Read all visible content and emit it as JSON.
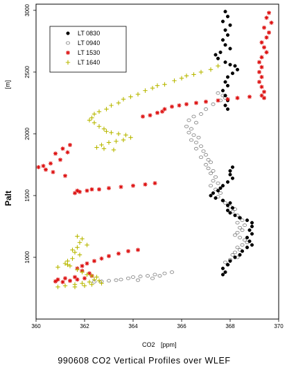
{
  "chart_data": {
    "type": "scatter",
    "title": "990608 CO2 Vertical Profiles over WLEF",
    "xlabel": "CO2",
    "xunit": "[ppm]",
    "ylabel": "Palt",
    "yunit": "[m]",
    "xlim": [
      360,
      370
    ],
    "ylim": [
      500,
      3050
    ],
    "xticks": [
      "360",
      "362",
      "364",
      "366",
      "368",
      "370"
    ],
    "yticks": [
      "1000",
      "1500",
      "2000",
      "2500",
      "3000"
    ],
    "grid": false,
    "legend_position": "top-left",
    "series": [
      {
        "name": "LT 0830",
        "marker": "filled-circle",
        "color": "#000000",
        "points": [
          [
            367.8,
            2990
          ],
          [
            367.9,
            2950
          ],
          [
            367.7,
            2910
          ],
          [
            368.0,
            2880
          ],
          [
            367.8,
            2840
          ],
          [
            367.9,
            2800
          ],
          [
            367.7,
            2760
          ],
          [
            367.8,
            2720
          ],
          [
            368.0,
            2690
          ],
          [
            367.6,
            2660
          ],
          [
            367.4,
            2640
          ],
          [
            367.5,
            2610
          ],
          [
            367.8,
            2580
          ],
          [
            368.0,
            2560
          ],
          [
            368.2,
            2550
          ],
          [
            368.3,
            2520
          ],
          [
            368.1,
            2490
          ],
          [
            367.9,
            2460
          ],
          [
            367.8,
            2420
          ],
          [
            367.9,
            2390
          ],
          [
            367.7,
            2350
          ],
          [
            367.8,
            2310
          ],
          [
            367.9,
            2270
          ],
          [
            367.8,
            2230
          ],
          [
            367.9,
            2200
          ],
          [
            368.1,
            1730
          ],
          [
            368.0,
            1700
          ],
          [
            368.0,
            1670
          ],
          [
            368.1,
            1640
          ],
          [
            367.9,
            1610
          ],
          [
            367.7,
            1580
          ],
          [
            367.6,
            1560
          ],
          [
            367.5,
            1540
          ],
          [
            367.3,
            1520
          ],
          [
            367.2,
            1500
          ],
          [
            367.4,
            1480
          ],
          [
            367.7,
            1460
          ],
          [
            368.0,
            1440
          ],
          [
            367.9,
            1420
          ],
          [
            368.1,
            1400
          ],
          [
            367.9,
            1380
          ],
          [
            368.0,
            1360
          ],
          [
            368.2,
            1340
          ],
          [
            368.4,
            1320
          ],
          [
            368.7,
            1300
          ],
          [
            368.9,
            1280
          ],
          [
            368.9,
            1250
          ],
          [
            368.8,
            1220
          ],
          [
            368.9,
            1190
          ],
          [
            368.7,
            1160
          ],
          [
            368.8,
            1130
          ],
          [
            368.9,
            1100
          ],
          [
            368.7,
            1080
          ],
          [
            368.5,
            1050
          ],
          [
            368.4,
            1020
          ],
          [
            368.2,
            1000
          ],
          [
            368.0,
            970
          ],
          [
            367.9,
            940
          ],
          [
            367.7,
            910
          ],
          [
            367.8,
            880
          ],
          [
            367.7,
            860
          ]
        ]
      },
      {
        "name": "LT 0940",
        "marker": "open-circle",
        "color": "#7a7a7a",
        "points": [
          [
            367.5,
            2330
          ],
          [
            367.7,
            2310
          ],
          [
            367.8,
            2290
          ],
          [
            367.6,
            2270
          ],
          [
            367.3,
            2240
          ],
          [
            367.0,
            2200
          ],
          [
            366.8,
            2160
          ],
          [
            366.5,
            2140
          ],
          [
            366.3,
            2110
          ],
          [
            366.6,
            2090
          ],
          [
            366.2,
            2060
          ],
          [
            366.4,
            2040
          ],
          [
            366.3,
            2010
          ],
          [
            366.5,
            1990
          ],
          [
            366.7,
            1970
          ],
          [
            366.4,
            1950
          ],
          [
            366.6,
            1930
          ],
          [
            366.8,
            1900
          ],
          [
            366.6,
            1880
          ],
          [
            366.9,
            1860
          ],
          [
            367.0,
            1830
          ],
          [
            366.8,
            1810
          ],
          [
            367.1,
            1790
          ],
          [
            367.2,
            1770
          ],
          [
            367.0,
            1750
          ],
          [
            367.1,
            1720
          ],
          [
            367.3,
            1700
          ],
          [
            367.2,
            1680
          ],
          [
            367.4,
            1650
          ],
          [
            367.3,
            1620
          ],
          [
            367.5,
            1600
          ],
          [
            367.2,
            1580
          ],
          [
            367.4,
            1550
          ],
          [
            367.6,
            1520
          ],
          [
            367.5,
            1490
          ],
          [
            367.7,
            1460
          ],
          [
            367.8,
            1440
          ],
          [
            368.0,
            1410
          ],
          [
            368.2,
            1390
          ],
          [
            368.1,
            1370
          ],
          [
            368.3,
            1340
          ],
          [
            368.4,
            1320
          ],
          [
            368.5,
            1300
          ],
          [
            368.3,
            1280
          ],
          [
            368.6,
            1260
          ],
          [
            368.4,
            1240
          ],
          [
            368.5,
            1220
          ],
          [
            368.3,
            1200
          ],
          [
            368.2,
            1180
          ],
          [
            368.4,
            1160
          ],
          [
            368.6,
            1140
          ],
          [
            368.7,
            1120
          ],
          [
            368.5,
            1100
          ],
          [
            368.3,
            1080
          ],
          [
            368.4,
            1060
          ],
          [
            368.2,
            1040
          ],
          [
            368.1,
            1020
          ],
          [
            368.3,
            1000
          ],
          [
            368.0,
            980
          ],
          [
            367.8,
            960
          ],
          [
            367.9,
            940
          ],
          [
            365.6,
            880
          ],
          [
            365.3,
            870
          ],
          [
            364.9,
            860
          ],
          [
            364.6,
            850
          ],
          [
            364.3,
            845
          ],
          [
            364.0,
            840
          ],
          [
            363.8,
            830
          ],
          [
            363.5,
            820
          ],
          [
            363.3,
            815
          ],
          [
            363.0,
            810
          ],
          [
            362.7,
            805
          ],
          [
            362.4,
            802
          ],
          [
            364.2,
            815
          ],
          [
            364.8,
            830
          ],
          [
            365.1,
            850
          ]
        ]
      },
      {
        "name": "LT 1530",
        "marker": "asterisk",
        "color": "#dd1111",
        "points": [
          [
            369.6,
            2980
          ],
          [
            369.5,
            2940
          ],
          [
            369.7,
            2900
          ],
          [
            369.4,
            2860
          ],
          [
            369.6,
            2820
          ],
          [
            369.5,
            2780
          ],
          [
            369.3,
            2740
          ],
          [
            369.4,
            2700
          ],
          [
            369.5,
            2660
          ],
          [
            369.3,
            2620
          ],
          [
            369.2,
            2580
          ],
          [
            369.3,
            2540
          ],
          [
            369.2,
            2500
          ],
          [
            369.3,
            2460
          ],
          [
            369.2,
            2420
          ],
          [
            369.3,
            2380
          ],
          [
            369.4,
            2340
          ],
          [
            369.3,
            2310
          ],
          [
            369.4,
            2290
          ],
          [
            368.8,
            2300
          ],
          [
            368.3,
            2290
          ],
          [
            367.9,
            2280
          ],
          [
            367.5,
            2270
          ],
          [
            367.0,
            2260
          ],
          [
            366.6,
            2250
          ],
          [
            366.2,
            2240
          ],
          [
            365.9,
            2230
          ],
          [
            365.6,
            2220
          ],
          [
            365.3,
            2200
          ],
          [
            365.2,
            2180
          ],
          [
            365.0,
            2170
          ],
          [
            364.7,
            2150
          ],
          [
            364.4,
            2140
          ],
          [
            361.4,
            1910
          ],
          [
            361.1,
            1880
          ],
          [
            361.3,
            1850
          ],
          [
            360.8,
            1840
          ],
          [
            361.0,
            1790
          ],
          [
            360.6,
            1760
          ],
          [
            360.3,
            1740
          ],
          [
            360.1,
            1730
          ],
          [
            360.4,
            1710
          ],
          [
            360.7,
            1690
          ],
          [
            361.2,
            1660
          ],
          [
            364.9,
            1600
          ],
          [
            364.5,
            1590
          ],
          [
            364.0,
            1580
          ],
          [
            363.5,
            1570
          ],
          [
            363.0,
            1560
          ],
          [
            362.6,
            1550
          ],
          [
            362.1,
            1540
          ],
          [
            361.8,
            1530
          ],
          [
            361.6,
            1520
          ],
          [
            361.7,
            1540
          ],
          [
            362.3,
            1550
          ],
          [
            364.2,
            1060
          ],
          [
            363.8,
            1050
          ],
          [
            363.4,
            1030
          ],
          [
            363.0,
            1010
          ],
          [
            362.7,
            990
          ],
          [
            362.4,
            970
          ],
          [
            362.1,
            950
          ],
          [
            361.9,
            930
          ],
          [
            361.7,
            910
          ],
          [
            361.9,
            890
          ],
          [
            362.2,
            870
          ],
          [
            362.3,
            850
          ],
          [
            362.0,
            830
          ],
          [
            361.7,
            820
          ],
          [
            361.4,
            810
          ],
          [
            361.1,
            800
          ],
          [
            360.8,
            805
          ],
          [
            360.9,
            820
          ],
          [
            361.2,
            830
          ],
          [
            361.6,
            840
          ]
        ]
      },
      {
        "name": "LT 1640",
        "marker": "plus",
        "color": "#b8b800",
        "points": [
          [
            367.5,
            2550
          ],
          [
            367.2,
            2520
          ],
          [
            366.8,
            2500
          ],
          [
            366.5,
            2480
          ],
          [
            366.2,
            2470
          ],
          [
            366.0,
            2450
          ],
          [
            365.7,
            2430
          ],
          [
            365.3,
            2400
          ],
          [
            365.0,
            2390
          ],
          [
            364.8,
            2370
          ],
          [
            364.5,
            2350
          ],
          [
            364.2,
            2320
          ],
          [
            363.9,
            2300
          ],
          [
            363.6,
            2280
          ],
          [
            363.4,
            2250
          ],
          [
            363.1,
            2230
          ],
          [
            362.9,
            2200
          ],
          [
            362.6,
            2180
          ],
          [
            362.4,
            2160
          ],
          [
            362.3,
            2130
          ],
          [
            362.2,
            2110
          ],
          [
            362.4,
            2090
          ],
          [
            362.6,
            2060
          ],
          [
            362.8,
            2040
          ],
          [
            362.9,
            2020
          ],
          [
            363.1,
            2010
          ],
          [
            363.4,
            2000
          ],
          [
            363.7,
            1990
          ],
          [
            363.9,
            1970
          ],
          [
            363.6,
            1950
          ],
          [
            363.3,
            1940
          ],
          [
            363.0,
            1930
          ],
          [
            362.7,
            1910
          ],
          [
            362.5,
            1890
          ],
          [
            362.8,
            1880
          ],
          [
            363.2,
            1870
          ],
          [
            361.7,
            1170
          ],
          [
            361.9,
            1150
          ],
          [
            361.8,
            1120
          ],
          [
            362.1,
            1100
          ],
          [
            361.7,
            1080
          ],
          [
            361.5,
            1060
          ],
          [
            361.6,
            1040
          ],
          [
            361.8,
            1020
          ],
          [
            361.5,
            990
          ],
          [
            361.3,
            970
          ],
          [
            361.2,
            950
          ],
          [
            361.4,
            930
          ],
          [
            361.7,
            900
          ],
          [
            361.9,
            880
          ],
          [
            362.1,
            860
          ],
          [
            362.3,
            850
          ],
          [
            362.5,
            840
          ],
          [
            362.4,
            820
          ],
          [
            362.6,
            810
          ],
          [
            362.2,
            800
          ],
          [
            361.9,
            790
          ],
          [
            361.6,
            780
          ],
          [
            361.2,
            770
          ],
          [
            360.9,
            760
          ],
          [
            361.6,
            760
          ],
          [
            362.0,
            770
          ],
          [
            362.3,
            780
          ],
          [
            362.7,
            790
          ],
          [
            360.9,
            920
          ],
          [
            361.3,
            940
          ]
        ]
      }
    ]
  }
}
